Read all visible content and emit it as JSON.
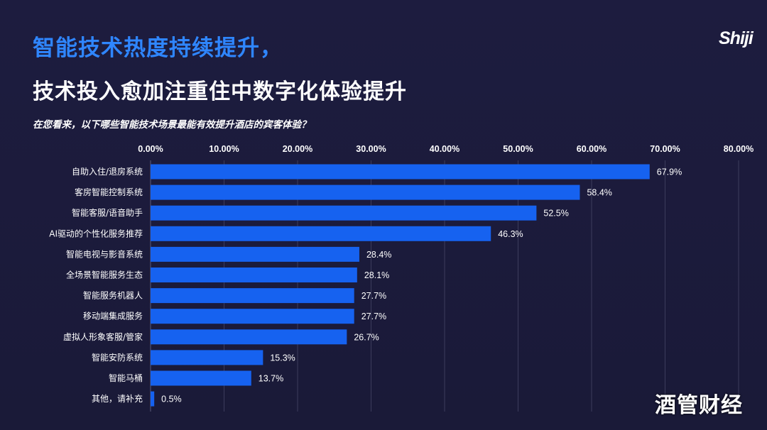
{
  "header": {
    "title_line1": "智能技术热度持续提升，",
    "title_line2": "技术投入愈加注重住中数字化体验提升",
    "question": "在您看来，以下哪些智能技术场景最能有效提升酒店的宾客体验？",
    "logo": "Shiji"
  },
  "watermark": "酒管财经",
  "colors": {
    "bar": "#1662f0",
    "background": "#1b1b3a",
    "grid": "#3c3c5c"
  },
  "chart_data": {
    "type": "bar",
    "orientation": "horizontal",
    "title": "在您看来，以下哪些智能技术场景最能有效提升酒店的宾客体验？",
    "xlim": [
      0,
      80
    ],
    "x_ticks": [
      "0.00%",
      "10.00%",
      "20.00%",
      "30.00%",
      "40.00%",
      "50.00%",
      "60.00%",
      "70.00%",
      "80.00%"
    ],
    "categories": [
      "自助入住/退房系统",
      "客房智能控制系统",
      "智能客服/语音助手",
      "AI驱动的个性化服务推荐",
      "智能电视与影音系统",
      "全场景智能服务生态",
      "智能服务机器人",
      "移动端集成服务",
      "虚拟人形象客服/管家",
      "智能安防系统",
      "智能马桶",
      "其他，请补充"
    ],
    "values": [
      67.9,
      58.4,
      52.5,
      46.3,
      28.4,
      28.1,
      27.7,
      27.7,
      26.7,
      15.3,
      13.7,
      0.5
    ],
    "value_labels": [
      "67.9%",
      "58.4%",
      "52.5%",
      "46.3%",
      "28.4%",
      "28.1%",
      "27.7%",
      "27.7%",
      "26.7%",
      "15.3%",
      "13.7%",
      "0.5%"
    ],
    "legend": "none",
    "grid": true
  }
}
